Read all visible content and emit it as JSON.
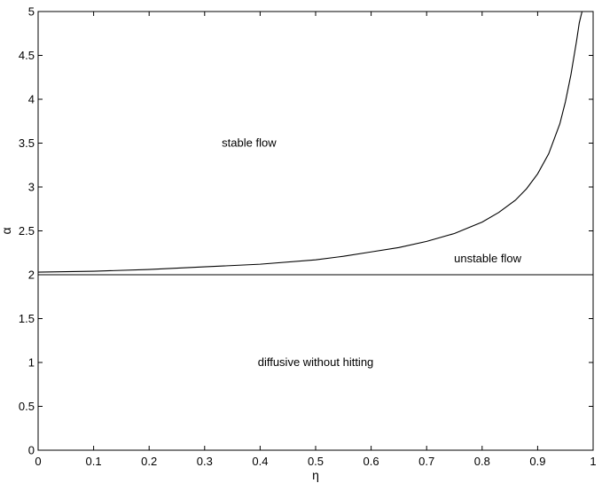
{
  "chart_data": {
    "type": "line",
    "xlabel": "η",
    "ylabel": "α",
    "xlim": [
      0,
      1
    ],
    "ylim": [
      0,
      5
    ],
    "x_ticks": [
      "0",
      "0.1",
      "0.2",
      "0.3",
      "0.4",
      "0.5",
      "0.6",
      "0.7",
      "0.8",
      "0.9",
      "1"
    ],
    "y_ticks": [
      "0",
      "0.5",
      "1",
      "1.5",
      "2",
      "2.5",
      "3",
      "3.5",
      "4",
      "4.5",
      "5"
    ],
    "grid": false,
    "series": [
      {
        "x": [
          0,
          0.1,
          0.2,
          0.3,
          0.4,
          0.5,
          0.55,
          0.6,
          0.65,
          0.7,
          0.75,
          0.8,
          0.83,
          0.86,
          0.88,
          0.9,
          0.92,
          0.94,
          0.95,
          0.96,
          0.97,
          0.975,
          0.98
        ],
        "y": [
          2.03,
          2.04,
          2.06,
          2.09,
          2.12,
          2.17,
          2.21,
          2.26,
          2.31,
          2.38,
          2.47,
          2.6,
          2.71,
          2.85,
          2.98,
          3.15,
          3.38,
          3.72,
          3.97,
          4.28,
          4.66,
          4.87,
          5.0
        ]
      },
      {
        "x": [
          0,
          1
        ],
        "y": [
          2,
          2
        ]
      }
    ],
    "annotations": [
      {
        "text": "stable flow",
        "x": 0.38,
        "y": 3.5
      },
      {
        "text": "unstable flow",
        "x": 0.81,
        "y": 2.18
      },
      {
        "text": "diffusive without hitting",
        "x": 0.5,
        "y": 1.0
      }
    ]
  }
}
